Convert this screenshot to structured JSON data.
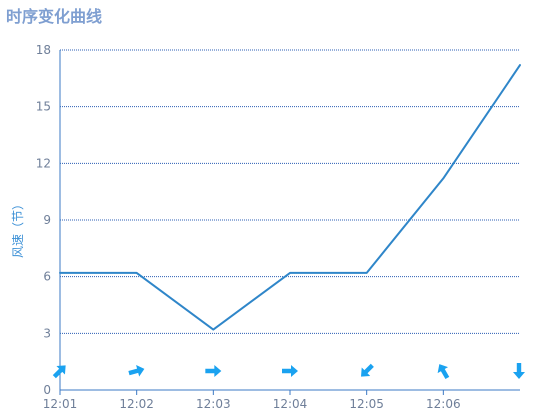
{
  "chart_data": {
    "type": "line",
    "title": "时序变化曲线",
    "xlabel": "",
    "ylabel": "风速（节）",
    "x": [
      "12:01",
      "12:02",
      "12:03",
      "12:04",
      "12:05",
      "12:06",
      ""
    ],
    "tick_labels_x": [
      "12:01",
      "12:02",
      "12:03",
      "12:04",
      "12:05",
      "12:06"
    ],
    "yticks": [
      "0",
      "3",
      "6",
      "9",
      "12",
      "15",
      "18"
    ],
    "ylim": [
      0,
      18
    ],
    "grid": true,
    "legend": "none",
    "series": [
      {
        "values": [
          6.2,
          6.2,
          3.2,
          6.2,
          6.2,
          11.2,
          17.2
        ],
        "color": "#2f86c9"
      }
    ],
    "wind_direction_arrows": {
      "icon": "arrow-icon",
      "color": "#1aa2f0",
      "directions_deg": [
        225,
        255,
        270,
        270,
        45,
        150,
        0
      ]
    },
    "colors": {
      "axis": "#3b79c4",
      "grid": "#2d5fb4",
      "tick_text": "#6f7f99",
      "title": "#7f9fd1",
      "ylabel": "#3a8fd6"
    }
  }
}
